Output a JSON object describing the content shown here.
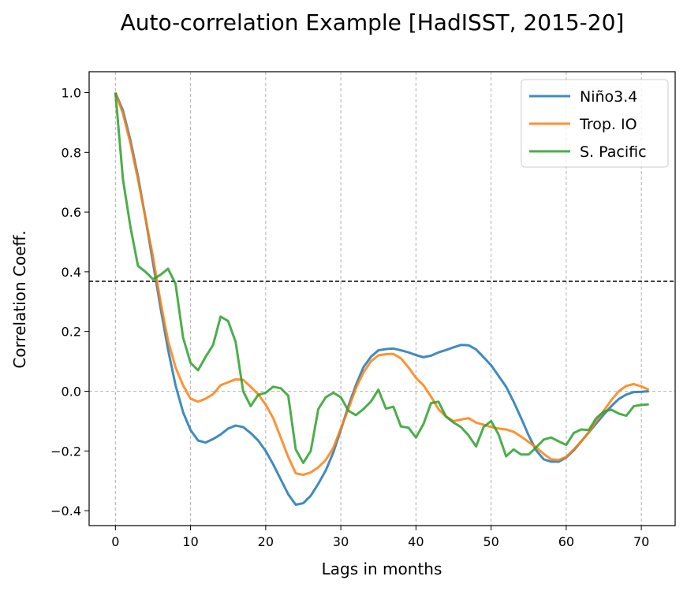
{
  "chart_data": {
    "type": "line",
    "title": "Auto-correlation Example [HadISST, 2015-20]",
    "xlabel": "Lags in months",
    "ylabel": "Correlation Coeff.",
    "xlim": [
      -3.5,
      74.5
    ],
    "ylim": [
      -0.45,
      1.07
    ],
    "xticks": [
      0,
      10,
      20,
      30,
      40,
      50,
      60,
      70
    ],
    "yticks": [
      1.0,
      0.8,
      0.6,
      0.4,
      0.2,
      0.0,
      -0.2,
      -0.4
    ],
    "ytick_labels": [
      "1.0",
      "0.8",
      "0.6",
      "0.4",
      "0.2",
      "0.0",
      "−0.2",
      "−0.4"
    ],
    "grid": "vertical dashed gridlines at x ticks",
    "legend_position": "top-right",
    "reference_lines": [
      {
        "axis": "y",
        "value": 0.368,
        "style": "dashed",
        "color": "#000000"
      },
      {
        "axis": "y",
        "value": 0.0,
        "style": "dashed",
        "color": "#bbbbbb"
      }
    ],
    "series": [
      {
        "name": "Niño3.4",
        "color": "#1f77b4",
        "x": [
          0,
          1,
          2,
          3,
          4,
          5,
          6,
          7,
          8,
          9,
          10,
          11,
          12,
          13,
          14,
          15,
          16,
          17,
          18,
          19,
          20,
          21,
          22,
          23,
          24,
          25,
          26,
          27,
          28,
          29,
          30,
          31,
          32,
          33,
          34,
          35,
          36,
          37,
          38,
          39,
          40,
          41,
          42,
          43,
          44,
          45,
          46,
          47,
          48,
          49,
          50,
          51,
          52,
          53,
          54,
          55,
          56,
          57,
          58,
          59,
          60,
          61,
          62,
          63,
          64,
          65,
          66,
          67,
          68,
          69,
          70,
          71
        ],
        "values": [
          1.0,
          0.94,
          0.84,
          0.72,
          0.58,
          0.43,
          0.28,
          0.14,
          0.02,
          -0.07,
          -0.13,
          -0.165,
          -0.172,
          -0.16,
          -0.145,
          -0.125,
          -0.115,
          -0.12,
          -0.14,
          -0.165,
          -0.2,
          -0.245,
          -0.295,
          -0.345,
          -0.38,
          -0.375,
          -0.35,
          -0.31,
          -0.265,
          -0.205,
          -0.13,
          -0.05,
          0.02,
          0.08,
          0.115,
          0.137,
          0.141,
          0.143,
          0.137,
          0.13,
          0.121,
          0.114,
          0.119,
          0.13,
          0.138,
          0.147,
          0.155,
          0.154,
          0.14,
          0.114,
          0.087,
          0.051,
          0.015,
          -0.035,
          -0.09,
          -0.148,
          -0.198,
          -0.228,
          -0.236,
          -0.236,
          -0.222,
          -0.198,
          -0.168,
          -0.138,
          -0.108,
          -0.078,
          -0.05,
          -0.026,
          -0.011,
          -0.003,
          -0.002,
          0.0
        ]
      },
      {
        "name": "Trop. IO",
        "color": "#ff7f0e",
        "x": [
          0,
          1,
          2,
          3,
          4,
          5,
          6,
          7,
          8,
          9,
          10,
          11,
          12,
          13,
          14,
          15,
          16,
          17,
          18,
          19,
          20,
          21,
          22,
          23,
          24,
          25,
          26,
          27,
          28,
          29,
          30,
          31,
          32,
          33,
          34,
          35,
          36,
          37,
          38,
          39,
          40,
          41,
          42,
          43,
          44,
          45,
          46,
          47,
          48,
          49,
          50,
          51,
          52,
          53,
          54,
          55,
          56,
          57,
          58,
          59,
          60,
          61,
          62,
          63,
          64,
          65,
          66,
          67,
          68,
          69,
          70,
          71
        ],
        "values": [
          1.0,
          0.93,
          0.83,
          0.71,
          0.58,
          0.45,
          0.3,
          0.17,
          0.08,
          0.02,
          -0.025,
          -0.035,
          -0.025,
          -0.01,
          0.02,
          0.03,
          0.04,
          0.038,
          0.015,
          -0.01,
          -0.045,
          -0.09,
          -0.155,
          -0.22,
          -0.275,
          -0.28,
          -0.272,
          -0.255,
          -0.23,
          -0.19,
          -0.125,
          -0.06,
          0.01,
          0.062,
          0.1,
          0.12,
          0.124,
          0.125,
          0.11,
          0.08,
          0.045,
          0.02,
          -0.018,
          -0.06,
          -0.085,
          -0.1,
          -0.095,
          -0.09,
          -0.105,
          -0.112,
          -0.12,
          -0.125,
          -0.128,
          -0.136,
          -0.152,
          -0.17,
          -0.188,
          -0.21,
          -0.228,
          -0.23,
          -0.22,
          -0.195,
          -0.168,
          -0.138,
          -0.1,
          -0.065,
          -0.03,
          0.0,
          0.018,
          0.024,
          0.016,
          0.005
        ]
      },
      {
        "name": "S. Pacific",
        "color": "#2ca02c",
        "x": [
          0,
          1,
          2,
          3,
          4,
          5,
          6,
          7,
          8,
          9,
          10,
          11,
          12,
          13,
          14,
          15,
          16,
          17,
          18,
          19,
          20,
          21,
          22,
          23,
          24,
          25,
          26,
          27,
          28,
          29,
          30,
          31,
          32,
          33,
          34,
          35,
          36,
          37,
          38,
          39,
          40,
          41,
          42,
          43,
          44,
          45,
          46,
          47,
          48,
          49,
          50,
          51,
          52,
          53,
          54,
          55,
          56,
          57,
          58,
          59,
          60,
          61,
          62,
          63,
          64,
          65,
          66,
          67,
          68,
          69,
          70,
          71
        ],
        "values": [
          1.0,
          0.71,
          0.55,
          0.42,
          0.4,
          0.375,
          0.39,
          0.41,
          0.36,
          0.18,
          0.095,
          0.07,
          0.115,
          0.155,
          0.25,
          0.235,
          0.165,
          0.0,
          -0.05,
          -0.012,
          -0.005,
          0.015,
          0.01,
          -0.015,
          -0.195,
          -0.24,
          -0.2,
          -0.06,
          -0.02,
          -0.005,
          -0.02,
          -0.065,
          -0.08,
          -0.06,
          -0.035,
          0.005,
          -0.058,
          -0.052,
          -0.118,
          -0.122,
          -0.155,
          -0.11,
          -0.04,
          -0.035,
          -0.085,
          -0.105,
          -0.12,
          -0.148,
          -0.185,
          -0.12,
          -0.1,
          -0.145,
          -0.218,
          -0.195,
          -0.212,
          -0.212,
          -0.188,
          -0.162,
          -0.155,
          -0.168,
          -0.18,
          -0.14,
          -0.128,
          -0.13,
          -0.09,
          -0.068,
          -0.062,
          -0.075,
          -0.082,
          -0.05,
          -0.046,
          -0.044
        ]
      }
    ]
  }
}
